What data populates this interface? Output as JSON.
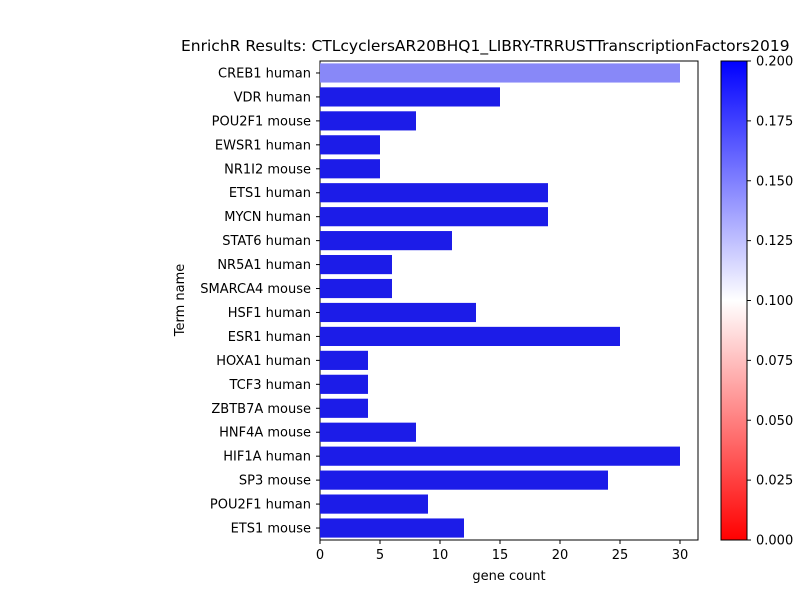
{
  "chart_data": {
    "type": "bar",
    "orientation": "horizontal",
    "title": "EnrichR Results: CTLcyclersAR20BHQ1_LIBRY-TRRUSTTranscriptionFactors2019",
    "xlabel": "gene count",
    "ylabel": "Term name",
    "xlim": [
      0,
      31.5
    ],
    "x_ticks": [
      0,
      5,
      10,
      15,
      20,
      25,
      30
    ],
    "categories": [
      "CREB1 human",
      "VDR human",
      "POU2F1 mouse",
      "EWSR1 human",
      "NR1I2 mouse",
      "ETS1 human",
      "MYCN human",
      "STAT6 human",
      "NR5A1 human",
      "SMARCA4 mouse",
      "HSF1 human",
      "ESR1 human",
      "HOXA1 human",
      "TCF3 human",
      "ZBTB7A mouse",
      "HNF4A mouse",
      "HIF1A human",
      "SP3 mouse",
      "POU2F1 human",
      "ETS1 mouse"
    ],
    "values": [
      30,
      15,
      8,
      5,
      5,
      19,
      19,
      11,
      6,
      6,
      13,
      25,
      4,
      4,
      4,
      8,
      30,
      24,
      9,
      12
    ],
    "colors": [
      "#8888f8",
      "#1c1ce8",
      "#1c1ce8",
      "#1c1ce8",
      "#1c1ce8",
      "#1c1ce8",
      "#1c1ce8",
      "#1c1ce8",
      "#1c1ce8",
      "#1c1ce8",
      "#1c1ce8",
      "#1c1ce8",
      "#1c1ce8",
      "#1c1ce8",
      "#1c1ce8",
      "#1c1ce8",
      "#1c1ce8",
      "#1c1ce8",
      "#1c1ce8",
      "#1c1ce8"
    ],
    "grid": false,
    "colorbar": {
      "range": [
        0,
        0.2
      ],
      "colormap": "bwr_r",
      "stops": [
        "#ff0000",
        "#ffffff",
        "#0000ff"
      ],
      "ticks": [
        "0.000",
        "0.025",
        "0.050",
        "0.075",
        "0.100",
        "0.125",
        "0.150",
        "0.175",
        "0.200"
      ]
    }
  }
}
